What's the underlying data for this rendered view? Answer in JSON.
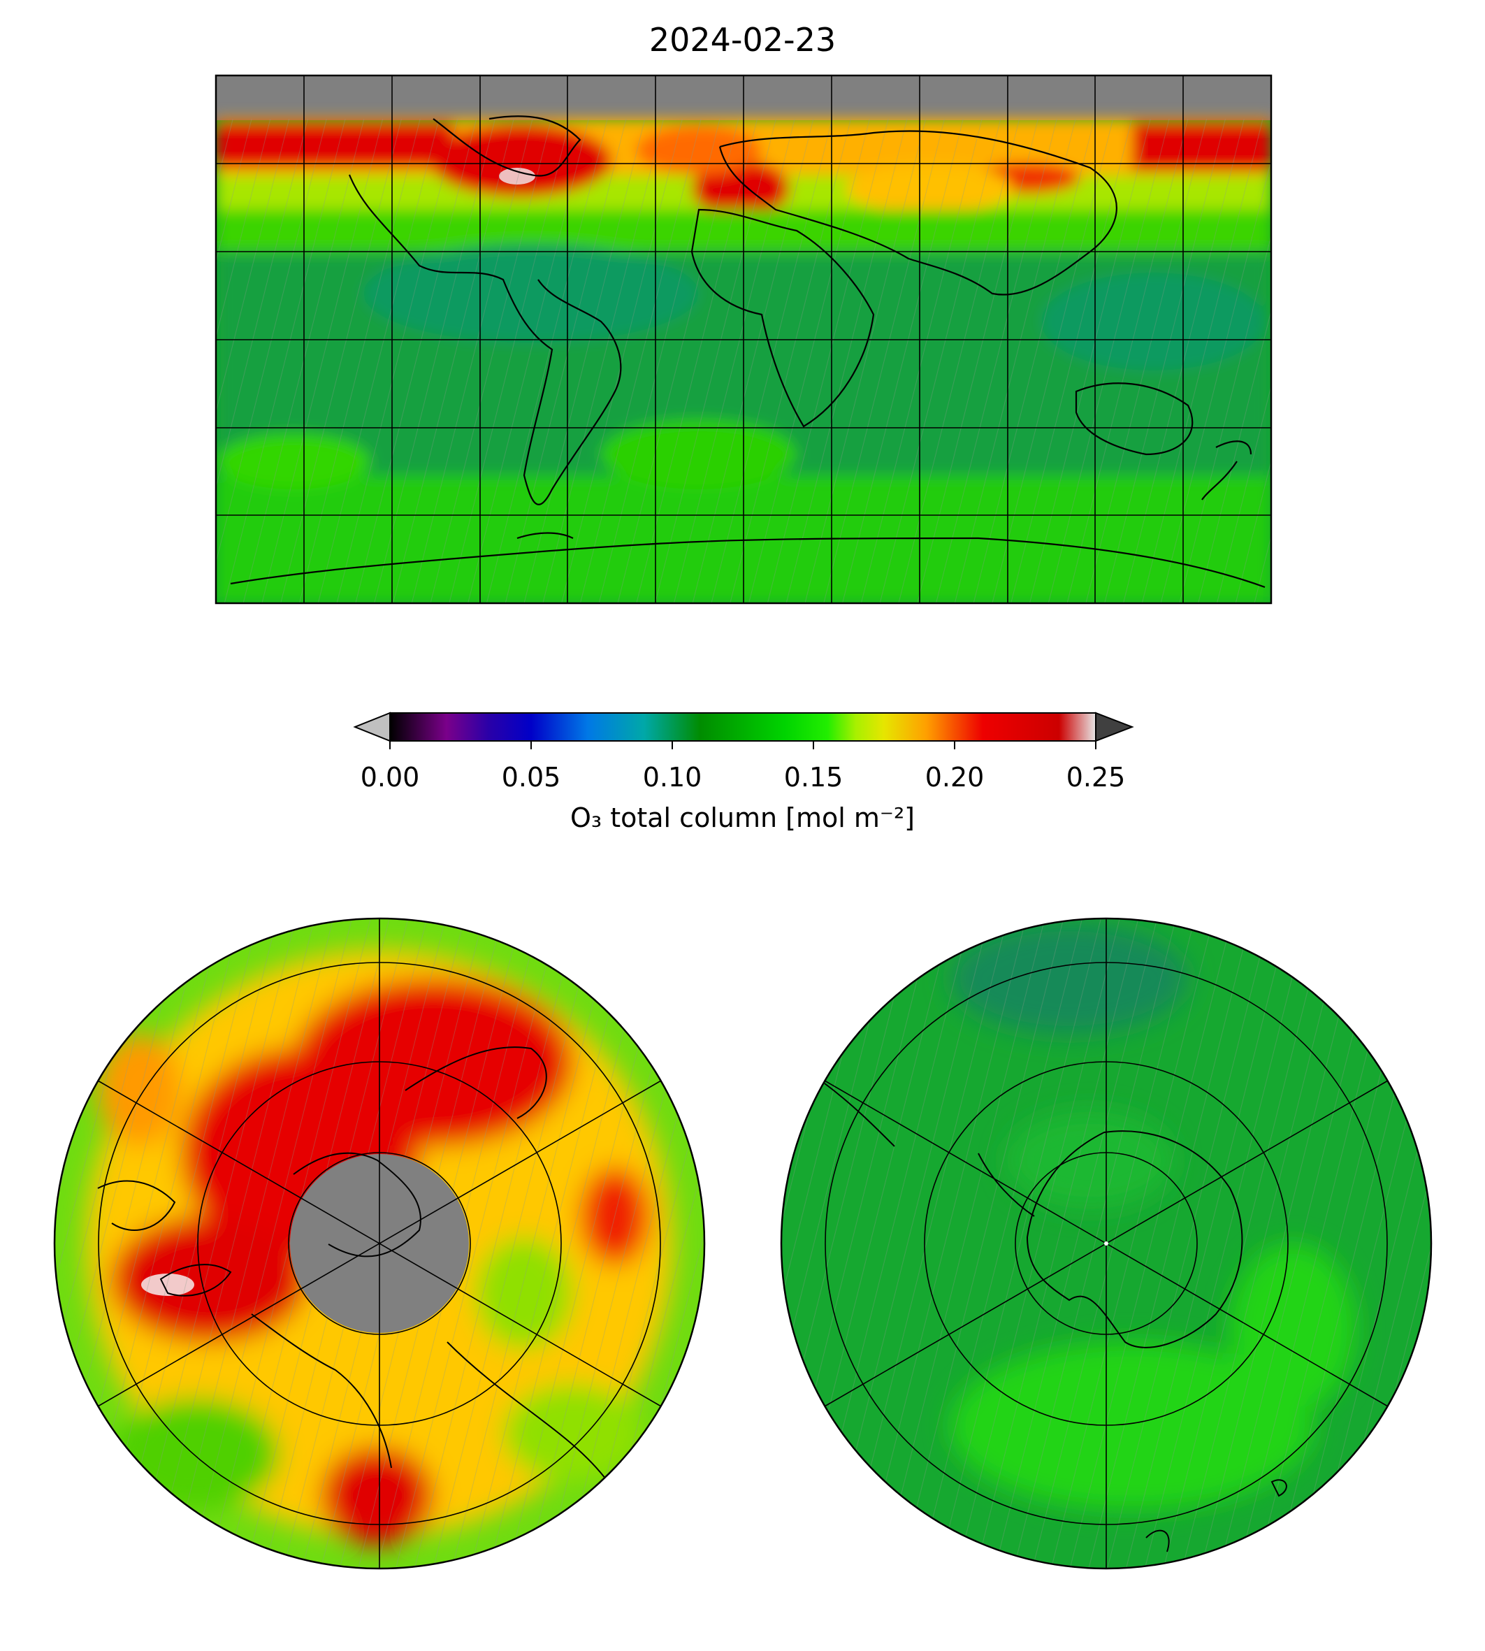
{
  "figure": {
    "title": "2024-02-23"
  },
  "colorbar": {
    "label": "O₃ total column [mol m⁻²]",
    "ticks": [
      "0.00",
      "0.05",
      "0.10",
      "0.15",
      "0.20",
      "0.25"
    ],
    "vmin": 0.0,
    "vmax": 0.25,
    "extend": "both",
    "under_color": "#c0c0c0",
    "over_color": "#404040",
    "stops": [
      {
        "v": 0.0,
        "c": "#000000"
      },
      {
        "v": 0.02,
        "c": "#7a008a"
      },
      {
        "v": 0.035,
        "c": "#2a00a8"
      },
      {
        "v": 0.05,
        "c": "#0000c8"
      },
      {
        "v": 0.07,
        "c": "#0078e6"
      },
      {
        "v": 0.09,
        "c": "#00a8a8"
      },
      {
        "v": 0.11,
        "c": "#008c00"
      },
      {
        "v": 0.14,
        "c": "#00d400"
      },
      {
        "v": 0.155,
        "c": "#22ee00"
      },
      {
        "v": 0.165,
        "c": "#a8f000"
      },
      {
        "v": 0.175,
        "c": "#e6e600"
      },
      {
        "v": 0.19,
        "c": "#ff9f00"
      },
      {
        "v": 0.21,
        "c": "#ee0000"
      },
      {
        "v": 0.237,
        "c": "#cc0000"
      },
      {
        "v": 0.25,
        "c": "#e6e6e6"
      }
    ]
  },
  "panels": {
    "global": {
      "projection": "plate-carree",
      "gridlines": true,
      "coastlines": true
    },
    "north_polar": {
      "projection": "north-polar-stereographic",
      "gridlines": true,
      "coastlines": true,
      "polar_night_mask": true
    },
    "south_polar": {
      "projection": "south-polar-stereographic",
      "gridlines": true,
      "coastlines": true
    }
  },
  "colors": {
    "no_data": "#808080",
    "coastline": "#000000",
    "grid": "#000000"
  }
}
